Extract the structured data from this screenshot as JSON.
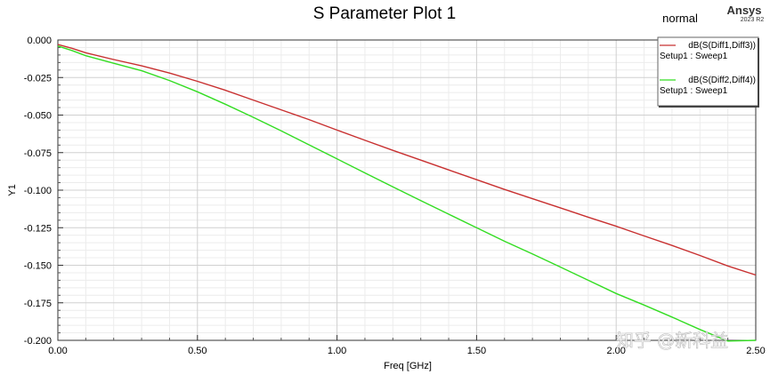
{
  "header": {
    "title": "S Parameter Plot 1",
    "mode": "normal",
    "brand": "Ansys",
    "brand_version": "2023 R2"
  },
  "watermark": "知乎 @新科益",
  "chart_data": {
    "type": "line",
    "title": "S Parameter Plot 1",
    "xlabel": "Freq [GHz]",
    "ylabel": "Y1",
    "xlim": [
      0.0,
      2.5
    ],
    "ylim": [
      -0.2,
      0.0
    ],
    "x_ticks": [
      0.0,
      0.5,
      1.0,
      1.5,
      2.0,
      2.5
    ],
    "x_tick_labels": [
      "0.00",
      "0.50",
      "1.00",
      "1.50",
      "2.00",
      "2.50"
    ],
    "y_ticks": [
      0.0,
      -0.025,
      -0.05,
      -0.075,
      -0.1,
      -0.125,
      -0.15,
      -0.175,
      -0.2
    ],
    "y_tick_labels": [
      "0.000",
      "-0.025",
      "-0.050",
      "-0.075",
      "-0.100",
      "-0.125",
      "-0.150",
      "-0.175",
      "-0.200"
    ],
    "grid": true,
    "legend_position": "top-right",
    "series": [
      {
        "name": "dB(S(Diff1,Diff3))",
        "setup": "Setup1 : Sweep1",
        "color": "#c83030",
        "x": [
          0.0,
          0.05,
          0.1,
          0.2,
          0.3,
          0.4,
          0.5,
          0.6,
          0.7,
          0.8,
          0.9,
          1.0,
          1.1,
          1.2,
          1.3,
          1.4,
          1.5,
          1.6,
          1.7,
          1.8,
          1.9,
          2.0,
          2.1,
          2.2,
          2.3,
          2.4,
          2.5
        ],
        "y": [
          -0.003,
          -0.0055,
          -0.0085,
          -0.013,
          -0.0172,
          -0.022,
          -0.0275,
          -0.0335,
          -0.04,
          -0.0465,
          -0.053,
          -0.06,
          -0.0668,
          -0.0735,
          -0.08,
          -0.0865,
          -0.093,
          -0.0995,
          -0.1057,
          -0.1118,
          -0.118,
          -0.124,
          -0.1305,
          -0.1368,
          -0.1435,
          -0.1505,
          -0.1565
        ]
      },
      {
        "name": "dB(S(Diff2,Diff4))",
        "setup": "Setup1 : Sweep1",
        "color": "#33dd22",
        "x": [
          0.0,
          0.05,
          0.1,
          0.2,
          0.3,
          0.4,
          0.5,
          0.6,
          0.7,
          0.8,
          0.9,
          1.0,
          1.1,
          1.2,
          1.3,
          1.4,
          1.5,
          1.6,
          1.7,
          1.8,
          1.9,
          2.0,
          2.1,
          2.2,
          2.3,
          2.4,
          2.5
        ],
        "y": [
          -0.004,
          -0.007,
          -0.0105,
          -0.0155,
          -0.0205,
          -0.027,
          -0.0345,
          -0.0428,
          -0.0515,
          -0.0605,
          -0.0698,
          -0.0792,
          -0.0885,
          -0.0978,
          -0.107,
          -0.116,
          -0.125,
          -0.134,
          -0.1425,
          -0.1512,
          -0.16,
          -0.1688,
          -0.1765,
          -0.1845,
          -0.1928,
          -0.2005,
          -0.2
        ]
      }
    ]
  }
}
